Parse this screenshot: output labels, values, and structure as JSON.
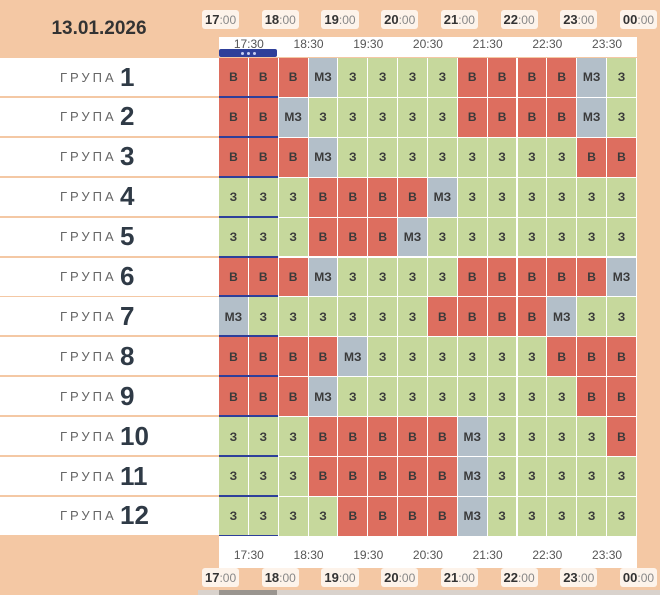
{
  "date": "13.01.2026",
  "hour_marks": [
    {
      "h": "17",
      "m": ":00"
    },
    {
      "h": "18",
      "m": ":00"
    },
    {
      "h": "19",
      "m": ":00"
    },
    {
      "h": "20",
      "m": ":00"
    },
    {
      "h": "21",
      "m": ":00"
    },
    {
      "h": "22",
      "m": ":00"
    },
    {
      "h": "23",
      "m": ":00"
    },
    {
      "h": "00",
      "m": ":00"
    }
  ],
  "half_labels": [
    "17:30",
    "18:30",
    "19:30",
    "20:30",
    "21:30",
    "22:30",
    "23:30"
  ],
  "group_word": "ГРУПА",
  "status_text": {
    "v": "В",
    "z": "З",
    "mz": "МЗ"
  },
  "colors": {
    "z": "#c6d89c",
    "v": "#dd6e5f",
    "mz": "#b3bfc9",
    "accent": "#2e3f9a",
    "background": "#f4c8a4"
  },
  "groups": [
    {
      "num": "1",
      "slots": [
        "v",
        "v",
        "v",
        "mz",
        "z",
        "z",
        "z",
        "z",
        "v",
        "v",
        "v",
        "v",
        "mz",
        "z"
      ]
    },
    {
      "num": "2",
      "slots": [
        "v",
        "v",
        "mz",
        "z",
        "z",
        "z",
        "z",
        "z",
        "v",
        "v",
        "v",
        "v",
        "mz",
        "z"
      ]
    },
    {
      "num": "3",
      "slots": [
        "v",
        "v",
        "v",
        "mz",
        "z",
        "z",
        "z",
        "z",
        "z",
        "z",
        "z",
        "z",
        "v",
        "v"
      ]
    },
    {
      "num": "4",
      "slots": [
        "z",
        "z",
        "z",
        "v",
        "v",
        "v",
        "v",
        "mz",
        "z",
        "z",
        "z",
        "z",
        "z",
        "z"
      ]
    },
    {
      "num": "5",
      "slots": [
        "z",
        "z",
        "z",
        "v",
        "v",
        "v",
        "mz",
        "z",
        "z",
        "z",
        "z",
        "z",
        "z",
        "z"
      ]
    },
    {
      "num": "6",
      "slots": [
        "v",
        "v",
        "v",
        "mz",
        "z",
        "z",
        "z",
        "z",
        "v",
        "v",
        "v",
        "v",
        "v",
        "mz"
      ]
    },
    {
      "num": "7",
      "slots": [
        "mz",
        "z",
        "z",
        "z",
        "z",
        "z",
        "z",
        "v",
        "v",
        "v",
        "v",
        "mz",
        "z",
        "z"
      ]
    },
    {
      "num": "8",
      "slots": [
        "v",
        "v",
        "v",
        "v",
        "mz",
        "z",
        "z",
        "z",
        "z",
        "z",
        "z",
        "v",
        "v",
        "v"
      ]
    },
    {
      "num": "9",
      "slots": [
        "v",
        "v",
        "v",
        "mz",
        "z",
        "z",
        "z",
        "z",
        "z",
        "z",
        "z",
        "z",
        "v",
        "v"
      ]
    },
    {
      "num": "10",
      "slots": [
        "z",
        "z",
        "z",
        "v",
        "v",
        "v",
        "v",
        "v",
        "mz",
        "z",
        "z",
        "z",
        "z",
        "v"
      ]
    },
    {
      "num": "11",
      "slots": [
        "z",
        "z",
        "z",
        "v",
        "v",
        "v",
        "v",
        "v",
        "mz",
        "z",
        "z",
        "z",
        "z",
        "z"
      ]
    },
    {
      "num": "12",
      "slots": [
        "z",
        "z",
        "z",
        "z",
        "v",
        "v",
        "v",
        "v",
        "mz",
        "z",
        "z",
        "z",
        "z",
        "z"
      ]
    }
  ]
}
